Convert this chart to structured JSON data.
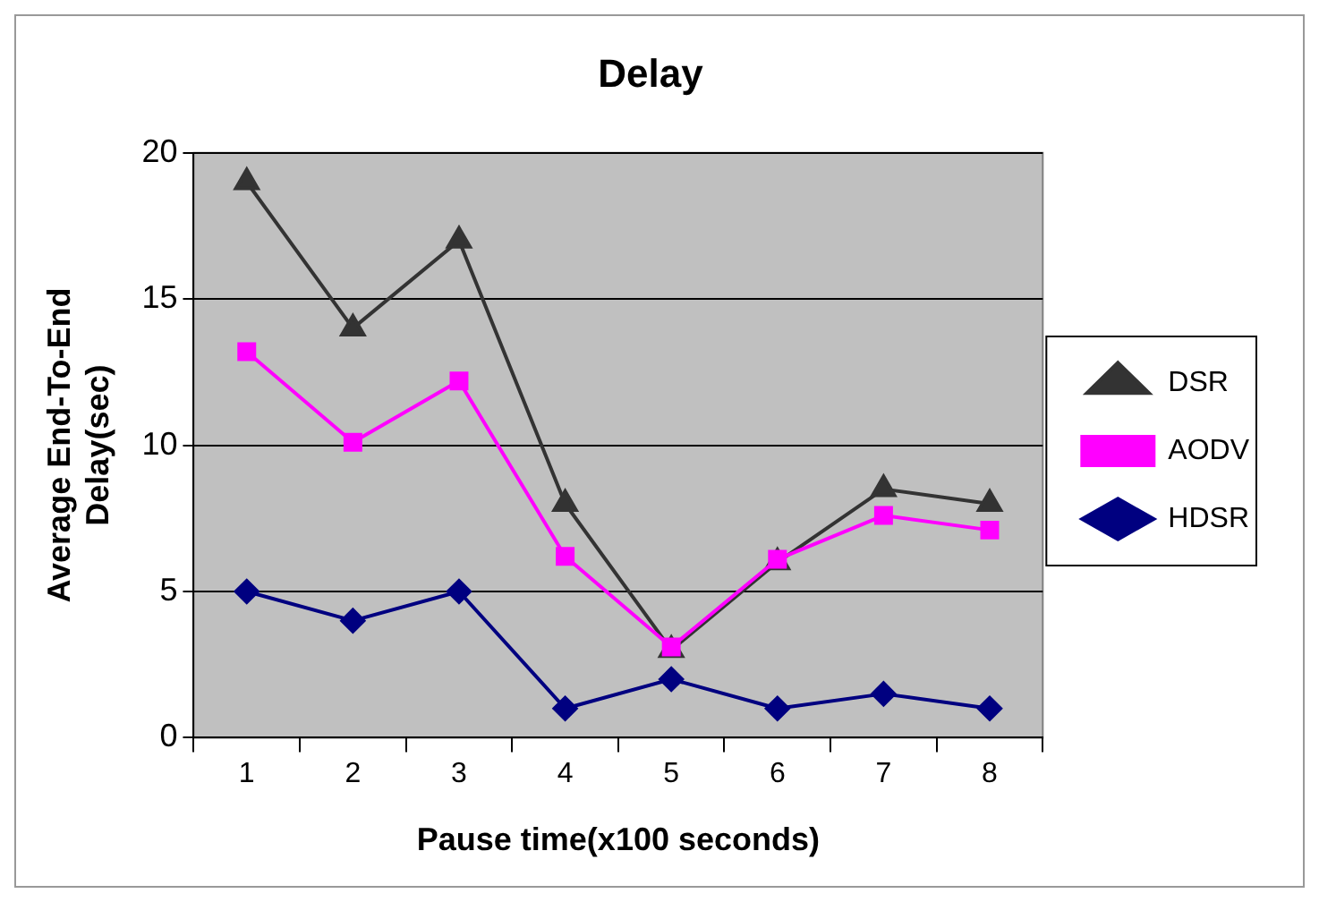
{
  "chart_data": {
    "type": "line",
    "title": "Delay",
    "xlabel": "Pause time(x100 seconds)",
    "ylabel": "Average End-To-End Delay(sec)",
    "categories": [
      "1",
      "2",
      "3",
      "4",
      "5",
      "6",
      "7",
      "8"
    ],
    "series": [
      {
        "name": "DSR",
        "color": "#333333",
        "marker": "triangle",
        "values": [
          19,
          14,
          17,
          8,
          3,
          6,
          8.5,
          8
        ]
      },
      {
        "name": "AODV",
        "color": "#ff00ff",
        "marker": "square",
        "values": [
          13.2,
          10.1,
          12.2,
          6.2,
          3.1,
          6.1,
          7.6,
          7.1
        ]
      },
      {
        "name": "HDSR",
        "color": "#000080",
        "marker": "diamond",
        "values": [
          5,
          4,
          5,
          1,
          2,
          1,
          1.5,
          1
        ]
      }
    ],
    "ylim": [
      0,
      20
    ],
    "yticks": [
      0,
      5,
      10,
      15,
      20
    ],
    "grid": "y",
    "legend": "right"
  }
}
